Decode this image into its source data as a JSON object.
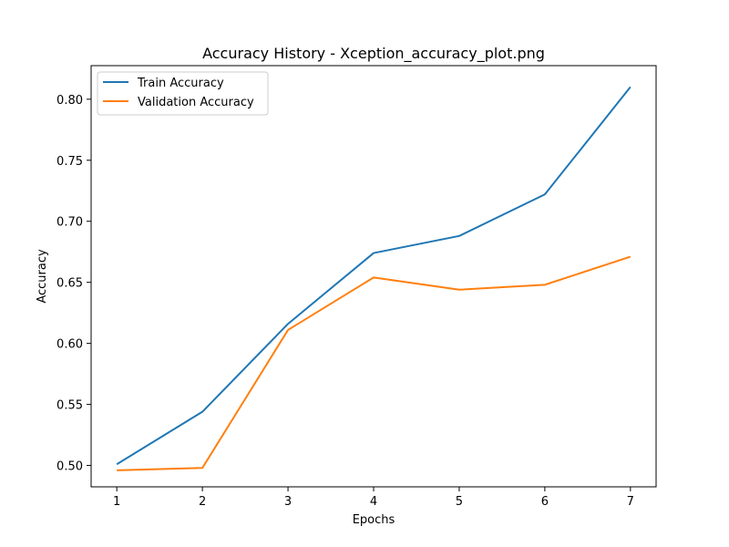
{
  "chart_data": {
    "type": "line",
    "title": "Accuracy History - Xception_accuracy_plot.png",
    "xlabel": "Epochs",
    "ylabel": "Accuracy",
    "x": [
      1,
      2,
      3,
      4,
      5,
      6,
      7
    ],
    "xlim": [
      0.7,
      7.3
    ],
    "ylim": [
      0.4825,
      0.8275
    ],
    "xticks": [
      "1",
      "2",
      "3",
      "4",
      "5",
      "6",
      "7"
    ],
    "yticks": [
      0.5,
      0.55,
      0.6,
      0.65,
      0.7,
      0.75,
      0.8
    ],
    "ytick_labels": [
      "0.50",
      "0.55",
      "0.60",
      "0.65",
      "0.70",
      "0.75",
      "0.80"
    ],
    "grid": false,
    "legend_position": "top-left",
    "series": [
      {
        "name": "Train Accuracy",
        "color": "#1f77b4",
        "values": [
          0.501,
          0.544,
          0.616,
          0.674,
          0.688,
          0.722,
          0.81
        ]
      },
      {
        "name": "Validation Accuracy",
        "color": "#ff7f0e",
        "values": [
          0.496,
          0.498,
          0.611,
          0.654,
          0.644,
          0.648,
          0.671
        ]
      }
    ]
  }
}
